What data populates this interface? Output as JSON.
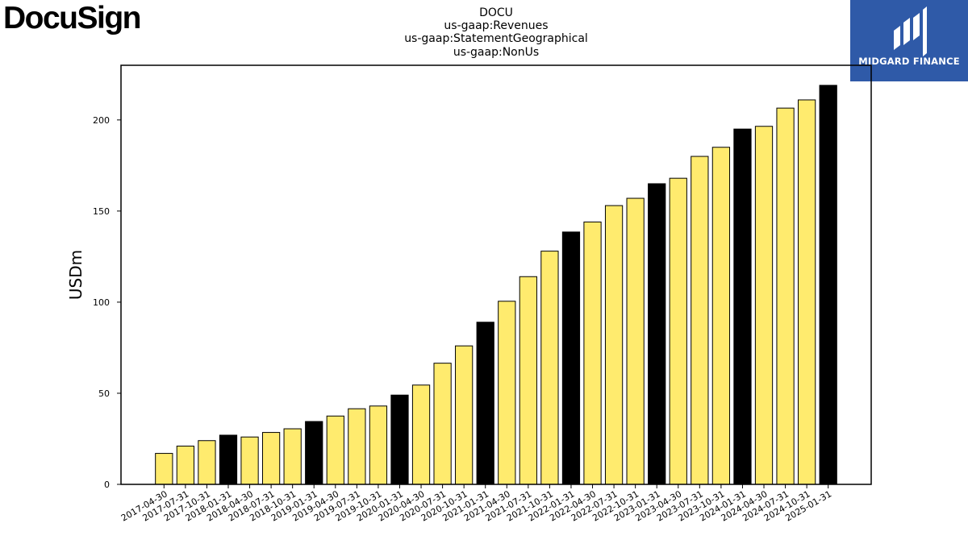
{
  "logos": {
    "left": "DocuSign",
    "right": "MIDGARD FINANCE"
  },
  "colors": {
    "bar_regular": "#ffeb6e",
    "bar_highlight": "#000000",
    "edge": "#000000",
    "midgard_bg": "#2f5aa8"
  },
  "chart_data": {
    "type": "bar",
    "title": [
      "DOCU",
      "us-gaap:Revenues",
      "us-gaap:StatementGeographical",
      "us-gaap:NonUs"
    ],
    "xlabel": "",
    "ylabel": "USDm",
    "ylim": [
      0,
      230
    ],
    "yticks": [
      0,
      50,
      100,
      150,
      200
    ],
    "grid": false,
    "categories": [
      "2017-04-30",
      "2017-07-31",
      "2017-10-31",
      "2018-01-31",
      "2018-04-30",
      "2018-07-31",
      "2018-10-31",
      "2019-01-31",
      "2019-04-30",
      "2019-07-31",
      "2019-10-31",
      "2020-01-31",
      "2020-04-30",
      "2020-07-31",
      "2020-10-31",
      "2021-01-31",
      "2021-04-30",
      "2021-07-31",
      "2021-10-31",
      "2022-01-31",
      "2022-04-30",
      "2022-07-31",
      "2022-10-31",
      "2023-01-31",
      "2023-04-30",
      "2023-07-31",
      "2023-10-31",
      "2024-01-31",
      "2024-04-30",
      "2024-07-31",
      "2024-10-31",
      "2025-01-31"
    ],
    "values": [
      17,
      21,
      24,
      27,
      26,
      28.5,
      30.5,
      34.5,
      37.5,
      41.5,
      43,
      49,
      54.5,
      66.5,
      76,
      89,
      100.5,
      114,
      128,
      138.5,
      144,
      153,
      157,
      165,
      168,
      180,
      185,
      195,
      196.5,
      206.5,
      211,
      219
    ],
    "highlighted": [
      false,
      false,
      false,
      true,
      false,
      false,
      false,
      true,
      false,
      false,
      false,
      true,
      false,
      false,
      false,
      true,
      false,
      false,
      false,
      true,
      false,
      false,
      false,
      true,
      false,
      false,
      false,
      true,
      false,
      false,
      false,
      true
    ]
  }
}
